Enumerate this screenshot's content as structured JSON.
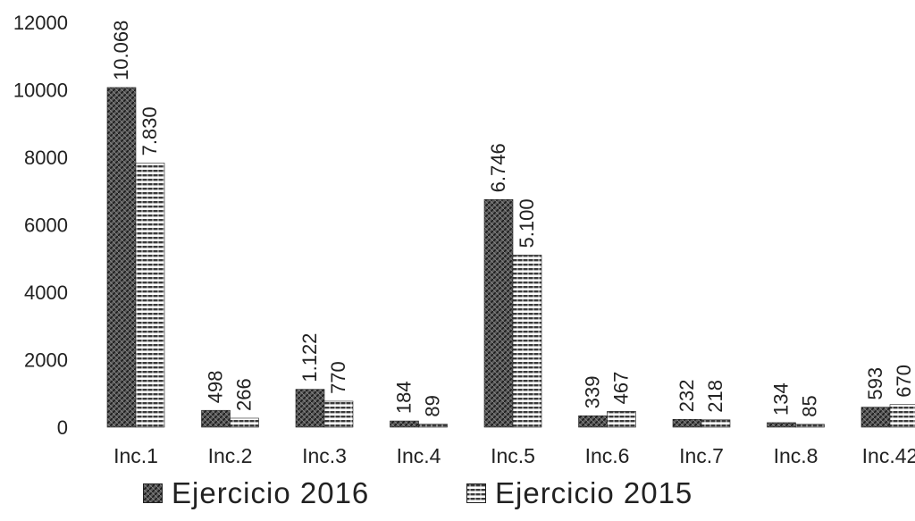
{
  "chart_data": {
    "type": "bar",
    "categories": [
      "Inc.1",
      "Inc.2",
      "Inc.3",
      "Inc.4",
      "Inc.5",
      "Inc.6",
      "Inc.7",
      "Inc.8",
      "Inc.42"
    ],
    "series": [
      {
        "name": "Ejercicio 2016",
        "values": [
          10068,
          498,
          1122,
          184,
          6746,
          339,
          232,
          134,
          593
        ],
        "labels": [
          "10.068",
          "498",
          "1.122",
          "184",
          "6.746",
          "339",
          "232",
          "134",
          "593"
        ],
        "color": "#3a3a3a",
        "pattern": "crosshatch"
      },
      {
        "name": "Ejercicio 2015",
        "values": [
          7830,
          266,
          770,
          89,
          5100,
          467,
          218,
          85,
          670
        ],
        "labels": [
          "7.830",
          "266",
          "770",
          "89",
          "5.100",
          "467",
          "218",
          "85",
          "670"
        ],
        "color": "#444444",
        "pattern": "horizontal-stripes"
      }
    ],
    "yticks": [
      "0",
      "2000",
      "4000",
      "6000",
      "8000",
      "10000",
      "12000"
    ],
    "ylim": [
      0,
      12000
    ],
    "title": "",
    "xlabel": "",
    "ylabel": "",
    "grid": false,
    "legend_position": "bottom"
  }
}
